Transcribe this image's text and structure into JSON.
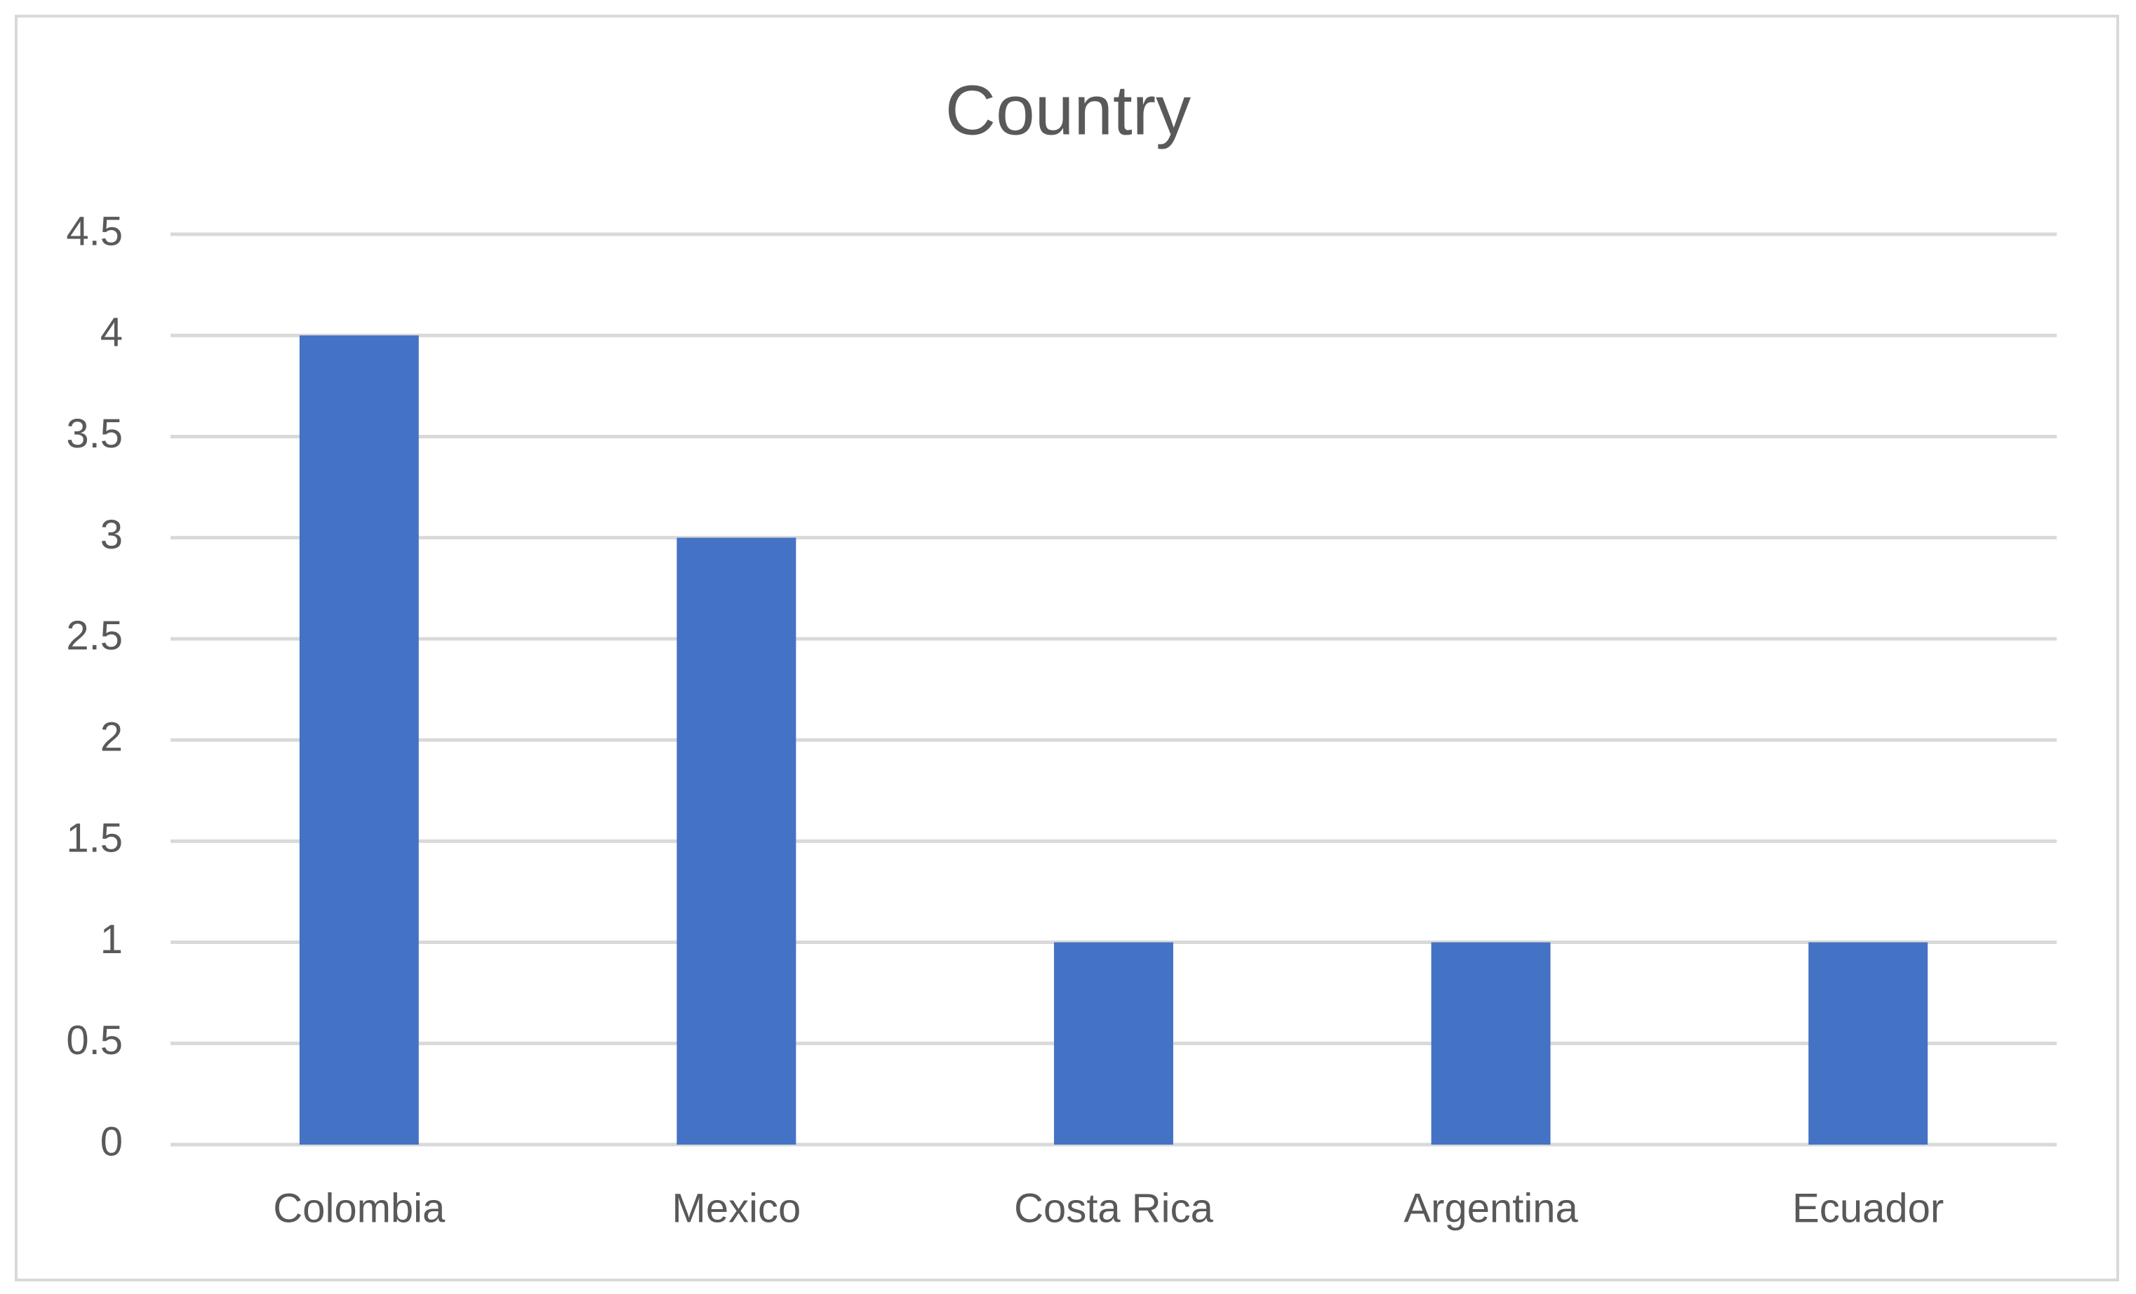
{
  "chart_data": {
    "type": "bar",
    "title": "Country",
    "categories": [
      "Colombia",
      "Mexico",
      "Costa Rica",
      "Argentina",
      "Ecuador"
    ],
    "values": [
      4,
      3,
      1,
      1,
      1
    ],
    "color": "#4472c4",
    "ylim": [
      0,
      4.5
    ],
    "yticks": [
      0,
      0.5,
      1,
      1.5,
      2,
      2.5,
      3,
      3.5,
      4,
      4.5
    ],
    "grid": true
  }
}
